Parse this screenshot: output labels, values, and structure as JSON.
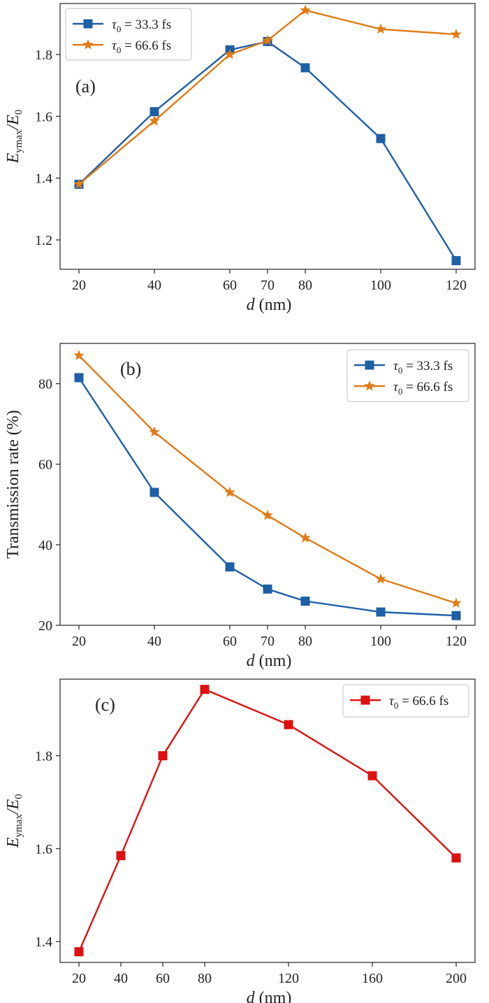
{
  "colors": {
    "blue": "#1f5fa5",
    "orange": "#e07b16",
    "red": "#dd1111",
    "axis": "#222222"
  },
  "chart_data": [
    {
      "panel_label": "(a)",
      "type": "line",
      "xlabel_var": "d",
      "xlabel_unit": " (nm)",
      "ylabel_main": "E",
      "ylabel_sub": "ymax",
      "ylabel_den": "/E",
      "ylabel_den_sub": "0",
      "xticks": [
        20,
        40,
        60,
        70,
        80,
        100,
        120
      ],
      "yticks": [
        "1.2",
        "1.4",
        "1.6",
        "1.8"
      ],
      "xlim": [
        15,
        125
      ],
      "ylim": [
        1.105,
        1.965
      ],
      "legend_position": "top-left",
      "series": [
        {
          "name": "τ",
          "name_sub": "0",
          "name_rest": " = 33.3 fs",
          "color": "#1f5fa5",
          "marker": "square",
          "x": [
            20,
            40,
            60,
            70,
            80,
            100,
            120
          ],
          "y": [
            1.38,
            1.615,
            1.815,
            1.842,
            1.757,
            1.528,
            1.133
          ]
        },
        {
          "name": "τ",
          "name_sub": "0",
          "name_rest": " = 66.6 fs",
          "color": "#e07b16",
          "marker": "star",
          "x": [
            20,
            40,
            60,
            70,
            80,
            100,
            120
          ],
          "y": [
            1.38,
            1.585,
            1.8,
            1.845,
            1.943,
            1.882,
            1.865
          ]
        }
      ]
    },
    {
      "panel_label": "(b)",
      "type": "line",
      "xlabel_var": "d",
      "xlabel_unit": " (nm)",
      "ylabel": "Transmission rate (%)",
      "xticks": [
        20,
        40,
        60,
        70,
        80,
        100,
        120
      ],
      "yticks": [
        "20",
        "40",
        "60",
        "80"
      ],
      "xlim": [
        15,
        125
      ],
      "ylim": [
        20,
        90
      ],
      "legend_position": "top-right",
      "series": [
        {
          "name": "τ",
          "name_sub": "0",
          "name_rest": " = 33.3 fs",
          "color": "#1f5fa5",
          "marker": "square",
          "x": [
            20,
            40,
            60,
            70,
            80,
            100,
            120
          ],
          "y": [
            81.5,
            53,
            34.5,
            29,
            26,
            23.3,
            22.4
          ]
        },
        {
          "name": "τ",
          "name_sub": "0",
          "name_rest": " = 66.6 fs",
          "color": "#e07b16",
          "marker": "star",
          "x": [
            20,
            40,
            60,
            70,
            80,
            100,
            120
          ],
          "y": [
            87,
            68,
            53,
            47.3,
            41.7,
            31.5,
            25.5
          ]
        }
      ]
    },
    {
      "panel_label": "(c)",
      "type": "line",
      "xlabel_var": "d",
      "xlabel_unit": " (nm)",
      "ylabel_main": "E",
      "ylabel_sub": "ymax",
      "ylabel_den": "/E",
      "ylabel_den_sub": "0",
      "xticks": [
        20,
        40,
        60,
        80,
        120,
        160,
        200
      ],
      "yticks": [
        "1.4",
        "1.6",
        "1.8"
      ],
      "xlim": [
        11,
        209
      ],
      "ylim": [
        1.355,
        1.965
      ],
      "legend_position": "top-right",
      "series": [
        {
          "name": "τ",
          "name_sub": "0",
          "name_rest": " = 66.6 fs",
          "color": "#dd1111",
          "marker": "square",
          "x": [
            20,
            40,
            60,
            80,
            120,
            160,
            200
          ],
          "y": [
            1.378,
            1.585,
            1.8,
            1.943,
            1.867,
            1.757,
            1.58
          ]
        }
      ]
    }
  ]
}
